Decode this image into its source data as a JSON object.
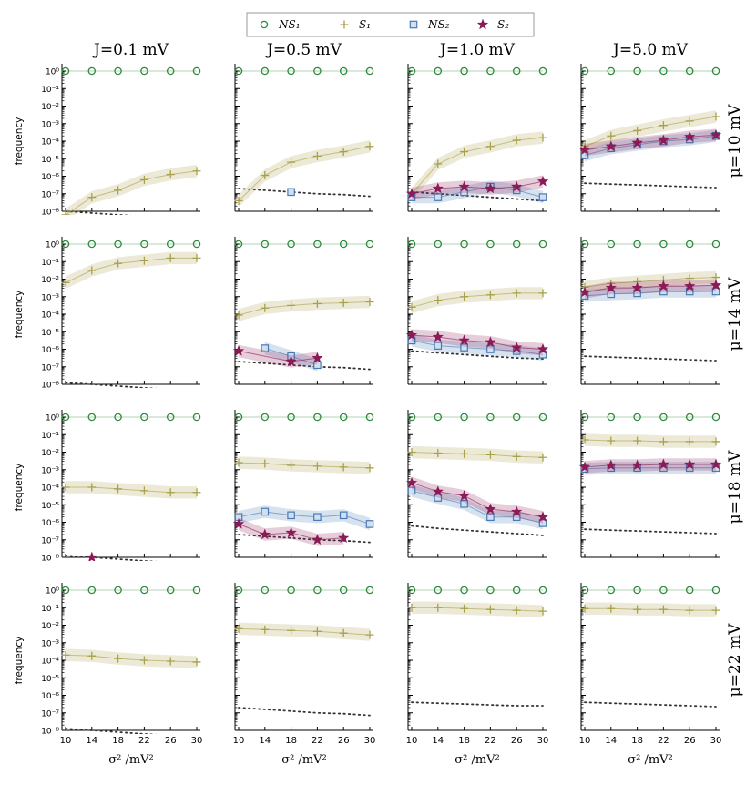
{
  "chart_data": {
    "type": "line",
    "x_values": [
      10,
      14,
      18,
      22,
      26,
      30
    ],
    "x_tick_labels": [
      "10",
      "14",
      "18",
      "22",
      "26",
      "30"
    ],
    "xlabel": "σ² /mV²",
    "ylabel": "frequency",
    "yscale": "log",
    "ylim_exponents": [
      -8,
      0
    ],
    "y_tick_labels": [
      "10⁰",
      "10⁻¹",
      "10⁻²",
      "10⁻³",
      "10⁻⁴",
      "10⁻⁵",
      "10⁻⁶",
      "10⁻⁷",
      "10⁻⁸"
    ],
    "column_titles": [
      "J=0.1 mV",
      "J=0.5 mV",
      "J=1.0 mV",
      "J=5.0 mV"
    ],
    "row_titles": [
      "μ=10 mV",
      "μ=14 mV",
      "μ=18 mV",
      "μ=22 mV"
    ],
    "legend": [
      {
        "key": "NS1",
        "label": "NS₁",
        "marker": "circle",
        "color": "#2e8b3c"
      },
      {
        "key": "S1",
        "label": "S₁",
        "marker": "plus",
        "color": "#a8a04a"
      },
      {
        "key": "NS2",
        "label": "NS₂",
        "marker": "square",
        "color": "#4a7ab5"
      },
      {
        "key": "S2",
        "label": "S₂",
        "marker": "star",
        "color": "#8b1a56"
      }
    ],
    "panels": [
      [
        {
          "NS1": [
            0,
            0,
            0,
            0,
            0,
            0
          ],
          "S1": [
            -8.2,
            -7.2,
            -6.8,
            -6.2,
            -5.9,
            -5.7
          ],
          "NS2": null,
          "S2": null,
          "ref": [
            -8.0,
            -8.1,
            -8.2,
            -8.3,
            -8.35,
            -8.4
          ]
        },
        {
          "NS1": [
            0,
            0,
            0,
            0,
            0,
            0
          ],
          "S1": [
            -2.2,
            -1.5,
            -1.1,
            -0.95,
            -0.8,
            -0.8
          ],
          "NS2": null,
          "S2": null,
          "ref": [
            -7.9,
            -8.0,
            -8.1,
            -8.2,
            -8.3,
            -8.4
          ]
        },
        {
          "NS1": [
            0,
            0,
            0,
            0,
            0,
            0
          ],
          "S1": [
            -4.0,
            -4.0,
            -4.1,
            -4.2,
            -4.3,
            -4.3
          ],
          "NS2": null,
          "S2": [
            null,
            -8.0,
            null,
            null,
            null,
            null
          ],
          "ref": [
            -7.9,
            -8.0,
            -8.1,
            -8.2,
            -8.3,
            -8.4
          ]
        },
        {
          "NS1": [
            0,
            0,
            0,
            0,
            0,
            0
          ],
          "S1": [
            -3.7,
            -3.75,
            -3.9,
            -4.0,
            -4.05,
            -4.1
          ],
          "NS2": null,
          "S2": null,
          "ref": [
            -7.9,
            -8.0,
            -8.1,
            -8.2,
            -8.3,
            -8.4
          ]
        }
      ],
      [
        {
          "NS1": [
            0,
            0,
            0,
            0,
            0,
            0
          ],
          "S1": [
            -7.4,
            -5.95,
            -5.2,
            -4.85,
            -4.6,
            -4.3
          ],
          "NS2": [
            null,
            null,
            -6.9,
            null,
            null,
            null
          ],
          "S2": null,
          "ref": [
            -6.7,
            -6.8,
            -6.9,
            -7.0,
            -7.05,
            -7.15
          ]
        },
        {
          "NS1": [
            0,
            0,
            0,
            0,
            0,
            0
          ],
          "S1": [
            -4.05,
            -3.65,
            -3.5,
            -3.4,
            -3.35,
            -3.3
          ],
          "NS2": [
            null,
            -5.95,
            -6.4,
            -6.9,
            null,
            null
          ],
          "S2": [
            -6.1,
            null,
            -6.7,
            -6.5,
            null,
            null
          ],
          "ref": [
            -6.7,
            -6.8,
            -6.9,
            -7.0,
            -7.05,
            -7.15
          ]
        },
        {
          "NS1": [
            0,
            0,
            0,
            0,
            0,
            0
          ],
          "S1": [
            -2.6,
            -2.65,
            -2.75,
            -2.8,
            -2.85,
            -2.9
          ],
          "NS2": [
            -5.7,
            -5.4,
            -5.6,
            -5.7,
            -5.6,
            -6.1
          ],
          "S2": [
            -6.1,
            -6.7,
            -6.6,
            -7.0,
            -6.9,
            null
          ],
          "ref": [
            -6.7,
            -6.8,
            -6.9,
            -7.0,
            -7.05,
            -7.15
          ]
        },
        {
          "NS1": [
            0,
            0,
            0,
            0,
            0,
            0
          ],
          "S1": [
            -2.2,
            -2.25,
            -2.3,
            -2.35,
            -2.45,
            -2.55
          ],
          "NS2": null,
          "S2": null,
          "ref": [
            -6.7,
            -6.8,
            -6.9,
            -7.0,
            -7.05,
            -7.15
          ]
        }
      ],
      [
        {
          "NS1": [
            0,
            0,
            0,
            0,
            0,
            0
          ],
          "S1": [
            -7.0,
            -5.3,
            -4.6,
            -4.3,
            -3.95,
            -3.8
          ],
          "NS2": [
            -7.2,
            -7.2,
            -6.9,
            -6.6,
            -6.8,
            -7.2
          ],
          "S2": [
            -7.0,
            -6.7,
            -6.6,
            -6.7,
            -6.6,
            -6.3
          ],
          "ref": [
            -6.9,
            -7.0,
            -7.1,
            -7.2,
            -7.3,
            -7.4
          ]
        },
        {
          "NS1": [
            0,
            0,
            0,
            0,
            0,
            0
          ],
          "S1": [
            -3.6,
            -3.2,
            -3.0,
            -2.9,
            -2.8,
            -2.8
          ],
          "NS2": [
            -5.5,
            -5.8,
            -5.9,
            -6.0,
            -6.1,
            -6.3
          ],
          "S2": [
            -5.2,
            -5.3,
            -5.5,
            -5.6,
            -5.9,
            -6.0
          ],
          "ref": [
            -6.1,
            -6.2,
            -6.3,
            -6.4,
            -6.5,
            -6.55
          ]
        },
        {
          "NS1": [
            0,
            0,
            0,
            0,
            0,
            0
          ],
          "S1": [
            -2.0,
            -2.05,
            -2.1,
            -2.15,
            -2.25,
            -2.3
          ],
          "NS2": [
            -4.2,
            -4.6,
            -4.95,
            -5.7,
            -5.7,
            -6.05
          ],
          "S2": [
            -3.75,
            -4.25,
            -4.5,
            -5.25,
            -5.4,
            -5.7
          ],
          "ref": [
            -6.2,
            -6.35,
            -6.45,
            -6.55,
            -6.65,
            -6.75
          ]
        },
        {
          "NS1": [
            0,
            0,
            0,
            0,
            0,
            0
          ],
          "S1": [
            -1.0,
            -1.0,
            -1.05,
            -1.1,
            -1.15,
            -1.2
          ],
          "NS2": null,
          "S2": null,
          "ref": [
            -6.4,
            -6.45,
            -6.5,
            -6.55,
            -6.6,
            -6.6
          ]
        }
      ],
      [
        {
          "NS1": [
            0,
            0,
            0,
            0,
            0,
            0
          ],
          "S1": [
            -4.3,
            -3.7,
            -3.4,
            -3.1,
            -2.85,
            -2.6
          ],
          "NS2": [
            -4.8,
            -4.4,
            -4.2,
            -4.0,
            -3.9,
            -3.7
          ],
          "S2": [
            -4.5,
            -4.3,
            -4.1,
            -3.95,
            -3.75,
            -3.65
          ],
          "ref": [
            -6.4,
            -6.45,
            -6.5,
            -6.55,
            -6.6,
            -6.65
          ]
        },
        {
          "NS1": [
            0,
            0,
            0,
            0,
            0,
            0
          ],
          "S1": [
            -2.45,
            -2.25,
            -2.15,
            -2.05,
            -1.95,
            -1.9
          ],
          "NS2": [
            -2.95,
            -2.85,
            -2.8,
            -2.7,
            -2.7,
            -2.7
          ],
          "S2": [
            -2.75,
            -2.5,
            -2.5,
            -2.4,
            -2.4,
            -2.35
          ],
          "ref": [
            -6.4,
            -6.45,
            -6.5,
            -6.55,
            -6.6,
            -6.65
          ]
        },
        {
          "NS1": [
            0,
            0,
            0,
            0,
            0,
            0
          ],
          "S1": [
            -1.3,
            -1.35,
            -1.35,
            -1.4,
            -1.4,
            -1.4
          ],
          "NS2": [
            -2.95,
            -2.9,
            -2.9,
            -2.9,
            -2.9,
            -2.9
          ],
          "S2": [
            -2.85,
            -2.75,
            -2.75,
            -2.7,
            -2.7,
            -2.7
          ],
          "ref": [
            -6.4,
            -6.45,
            -6.5,
            -6.55,
            -6.6,
            -6.65
          ]
        },
        {
          "NS1": [
            0,
            0,
            0,
            0,
            0,
            0
          ],
          "S1": [
            -1.05,
            -1.05,
            -1.1,
            -1.1,
            -1.15,
            -1.15
          ],
          "NS2": null,
          "S2": null,
          "ref": [
            -6.4,
            -6.45,
            -6.5,
            -6.55,
            -6.6,
            -6.65
          ]
        }
      ]
    ],
    "panel_order": "panels[column][row]"
  }
}
